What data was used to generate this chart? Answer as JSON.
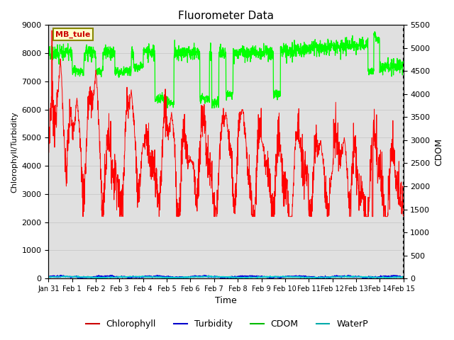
{
  "title": "Fluorometer Data",
  "xlabel": "Time",
  "ylabel_left": "Chlorophyll/Turbidity",
  "ylabel_right": "CDOM",
  "ylim_left": [
    0,
    9000
  ],
  "ylim_right": [
    0,
    5500
  ],
  "xlim_days": [
    0,
    15
  ],
  "annotation_text": "MB_tule",
  "annotation_box_color": "#ffffcc",
  "annotation_edge_color": "#888800",
  "annotation_text_color": "#cc0000",
  "grid_color": "#cccccc",
  "bg_color": "#e0e0e0",
  "line_colors": {
    "Chlorophyll": "#ff0000",
    "Turbidity": "#0000dd",
    "CDOM": "#00ff00",
    "WaterP": "#00cccc"
  },
  "legend_colors": {
    "Chlorophyll": "#cc0000",
    "Turbidity": "#0000cc",
    "CDOM": "#00bb00",
    "WaterP": "#00aaaa"
  },
  "yticks_left": [
    0,
    1000,
    2000,
    3000,
    4000,
    5000,
    6000,
    7000,
    8000,
    9000
  ],
  "yticks_right": [
    0,
    500,
    1000,
    1500,
    2000,
    2500,
    3000,
    3500,
    4000,
    4500,
    5000,
    5500
  ],
  "xtick_labels": [
    "Jan 31",
    "Feb 1",
    "Feb 2",
    "Feb 3",
    "Feb 4",
    "Feb 5",
    "Feb 6",
    "Feb 7",
    "Feb 8",
    "Feb 9",
    "Feb 10",
    "Feb 11",
    "Feb 12",
    "Feb 13",
    "Feb 14",
    "Feb 15"
  ],
  "xtick_positions": [
    0,
    1,
    2,
    3,
    4,
    5,
    6,
    7,
    8,
    9,
    10,
    11,
    12,
    13,
    14,
    15
  ]
}
